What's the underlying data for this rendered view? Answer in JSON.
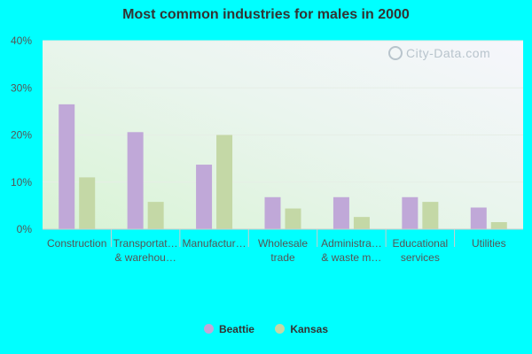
{
  "chart_data": {
    "type": "bar",
    "title": "Most common industries for males in 2000",
    "categories": [
      [
        "Construction"
      ],
      [
        "Transportat…",
        "& warehou…"
      ],
      [
        "Manufactur…"
      ],
      [
        "Wholesale",
        "trade"
      ],
      [
        "Administra…",
        "& waste m…"
      ],
      [
        "Educational",
        "services"
      ],
      [
        "Utilities"
      ]
    ],
    "series": [
      {
        "name": "Beattie",
        "color": "#c0a8d8",
        "values": [
          26.5,
          20.6,
          13.7,
          6.8,
          6.8,
          6.8,
          4.6
        ]
      },
      {
        "name": "Kansas",
        "color": "#c4d8a6",
        "values": [
          11.0,
          5.8,
          20.0,
          4.4,
          2.6,
          5.8,
          1.5
        ]
      }
    ],
    "y_ticks": [
      "0%",
      "10%",
      "20%",
      "30%",
      "40%"
    ],
    "ylim": [
      0,
      40
    ],
    "grid": true,
    "legend_position": "bottom"
  },
  "watermark": "City-Data.com"
}
